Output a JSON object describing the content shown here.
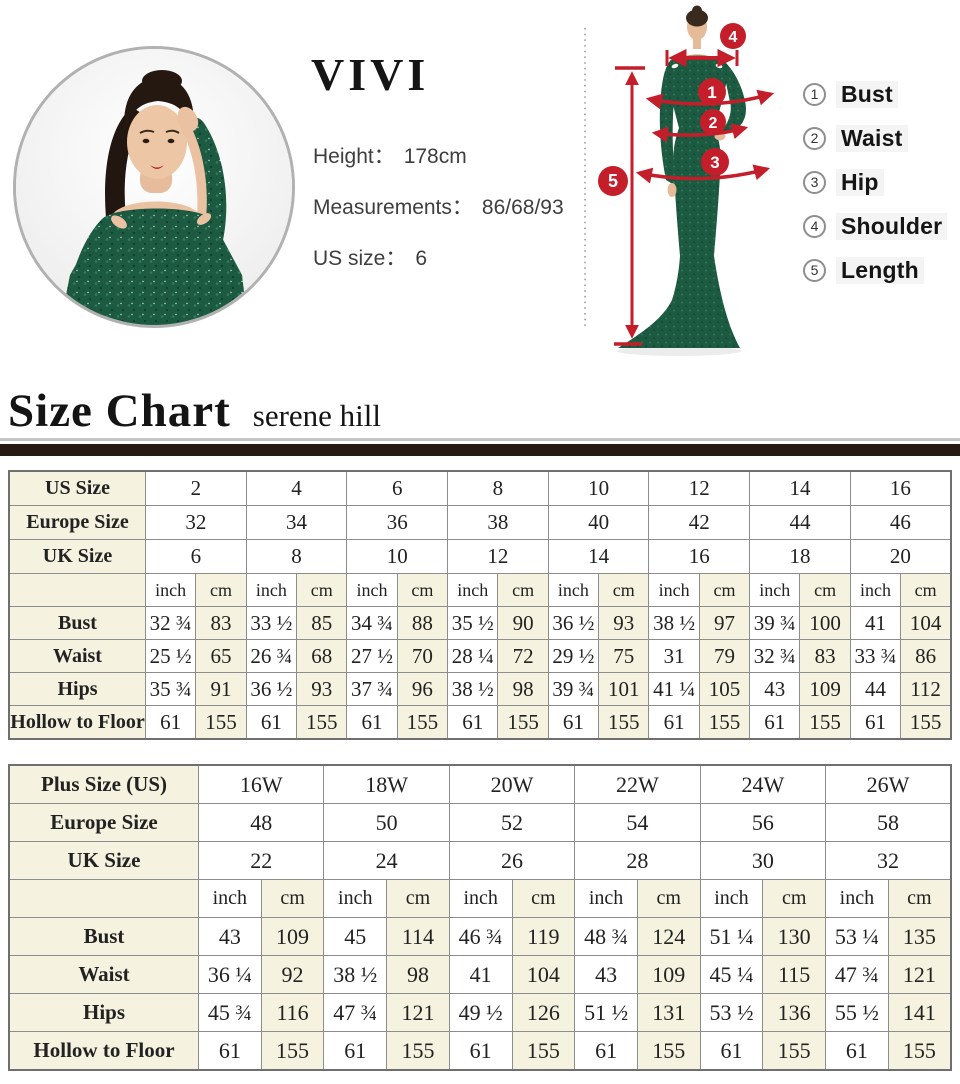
{
  "model_info": {
    "brand": "VIVI",
    "lines": [
      {
        "label": "Height：",
        "value": "178cm"
      },
      {
        "label": "Measurements：",
        "value": "86/68/93"
      },
      {
        "label": "US size：",
        "value": "6"
      }
    ]
  },
  "diagram": {
    "markers": [
      "1",
      "2",
      "3",
      "4",
      "5"
    ],
    "legend": [
      {
        "num": "1",
        "label": "Bust"
      },
      {
        "num": "2",
        "label": "Waist"
      },
      {
        "num": "3",
        "label": "Hip"
      },
      {
        "num": "4",
        "label": "Shoulder"
      },
      {
        "num": "5",
        "label": "Length"
      }
    ]
  },
  "heading": {
    "title": "Size Chart",
    "subtitle": "serene hill"
  },
  "colors": {
    "accent_red": "#c41e2a",
    "dress_green": "#1c5a41",
    "table_cream": "#f5f2df",
    "divider_dark": "#281a12"
  },
  "size_tables": {
    "unit_headers": [
      "inch",
      "cm"
    ],
    "standard": {
      "size_rows": [
        {
          "label": "US Size",
          "values": [
            "2",
            "4",
            "6",
            "8",
            "10",
            "12",
            "14",
            "16"
          ]
        },
        {
          "label": "Europe Size",
          "values": [
            "32",
            "34",
            "36",
            "38",
            "40",
            "42",
            "44",
            "46"
          ]
        },
        {
          "label": "UK Size",
          "values": [
            "6",
            "8",
            "10",
            "12",
            "14",
            "16",
            "18",
            "20"
          ]
        }
      ],
      "measure_rows": [
        {
          "label": "Bust",
          "inch": [
            "32 ¾",
            "33 ½",
            "34 ¾",
            "35 ½",
            "36 ½",
            "38 ½",
            "39 ¾",
            "41"
          ],
          "cm": [
            "83",
            "85",
            "88",
            "90",
            "93",
            "97",
            "100",
            "104"
          ]
        },
        {
          "label": "Waist",
          "inch": [
            "25 ½",
            "26 ¾",
            "27 ½",
            "28 ¼",
            "29 ½",
            "31",
            "32 ¾",
            "33 ¾"
          ],
          "cm": [
            "65",
            "68",
            "70",
            "72",
            "75",
            "79",
            "83",
            "86"
          ]
        },
        {
          "label": "Hips",
          "inch": [
            "35 ¾",
            "36 ½",
            "37 ¾",
            "38 ½",
            "39 ¾",
            "41 ¼",
            "43",
            "44"
          ],
          "cm": [
            "91",
            "93",
            "96",
            "98",
            "101",
            "105",
            "109",
            "112"
          ]
        },
        {
          "label": "Hollow to Floor",
          "inch": [
            "61",
            "61",
            "61",
            "61",
            "61",
            "61",
            "61",
            "61"
          ],
          "cm": [
            "155",
            "155",
            "155",
            "155",
            "155",
            "155",
            "155",
            "155"
          ]
        }
      ]
    },
    "plus": {
      "size_rows": [
        {
          "label": "Plus Size (US)",
          "values": [
            "16W",
            "18W",
            "20W",
            "22W",
            "24W",
            "26W"
          ]
        },
        {
          "label": "Europe Size",
          "values": [
            "48",
            "50",
            "52",
            "54",
            "56",
            "58"
          ]
        },
        {
          "label": "UK Size",
          "values": [
            "22",
            "24",
            "26",
            "28",
            "30",
            "32"
          ]
        }
      ],
      "measure_rows": [
        {
          "label": "Bust",
          "inch": [
            "43",
            "45",
            "46 ¾",
            "48 ¾",
            "51 ¼",
            "53 ¼"
          ],
          "cm": [
            "109",
            "114",
            "119",
            "124",
            "130",
            "135"
          ]
        },
        {
          "label": "Waist",
          "inch": [
            "36 ¼",
            "38 ½",
            "41",
            "43",
            "45 ¼",
            "47 ¾"
          ],
          "cm": [
            "92",
            "98",
            "104",
            "109",
            "115",
            "121"
          ]
        },
        {
          "label": "Hips",
          "inch": [
            "45 ¾",
            "47 ¾",
            "49 ½",
            "51 ½",
            "53 ½",
            "55 ½"
          ],
          "cm": [
            "116",
            "121",
            "126",
            "131",
            "136",
            "141"
          ]
        },
        {
          "label": "Hollow to Floor",
          "inch": [
            "61",
            "61",
            "61",
            "61",
            "61",
            "61"
          ],
          "cm": [
            "155",
            "155",
            "155",
            "155",
            "155",
            "155"
          ]
        }
      ]
    }
  }
}
